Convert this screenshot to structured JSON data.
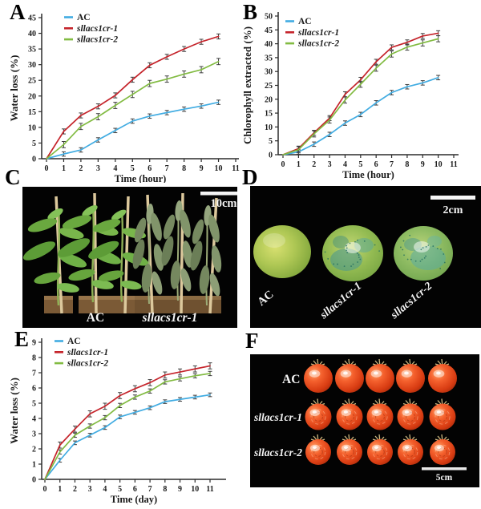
{
  "panels": {
    "A": {
      "letter": "A"
    },
    "B": {
      "letter": "B"
    },
    "C": {
      "letter": "C",
      "scale_bar": "10cm",
      "group_labels": [
        "AC",
        "sllacs1cr-1"
      ]
    },
    "D": {
      "letter": "D",
      "scale_bar": "2cm",
      "fruit_labels": [
        "AC",
        "sllacs1cr-1",
        "sllacs1cr-2"
      ]
    },
    "E": {
      "letter": "E"
    },
    "F": {
      "letter": "F",
      "scale_bar": "5cm",
      "row_labels": [
        "AC",
        "sllacs1cr-1",
        "sllacs1cr-2"
      ]
    }
  },
  "chart_data": [
    {
      "id": "A",
      "type": "line",
      "xlabel": "Time (hour)",
      "ylabel": "Water loss (%)",
      "xlim": [
        0,
        11
      ],
      "ylim": [
        0,
        45
      ],
      "ytick_step": 5,
      "xticks": [
        0,
        1,
        2,
        3,
        4,
        5,
        6,
        7,
        8,
        9,
        10,
        11
      ],
      "x": [
        0,
        1,
        2,
        3,
        4,
        5,
        6,
        7,
        8,
        9,
        10
      ],
      "grid": false,
      "legend_position": "top-left",
      "series": [
        {
          "name": "AC",
          "color": "#41ace2",
          "italic": false,
          "err": 0.7,
          "values": [
            0,
            1.5,
            2.8,
            6.0,
            9.0,
            12.0,
            13.6,
            14.7,
            15.8,
            16.8,
            18.0
          ]
        },
        {
          "name": "sllacs1cr-1",
          "color": "#c5242b",
          "italic": true,
          "err": 0.8,
          "values": [
            0,
            8.7,
            13.8,
            16.7,
            20.2,
            25.2,
            29.8,
            32.5,
            35.0,
            37.3,
            39.0
          ]
        },
        {
          "name": "sllacs1cr-2",
          "color": "#82bb42",
          "italic": true,
          "err": 1.0,
          "values": [
            0,
            4.5,
            10.3,
            13.4,
            17.0,
            20.5,
            24.0,
            25.4,
            27.0,
            28.4,
            31.0
          ]
        }
      ]
    },
    {
      "id": "B",
      "type": "line",
      "xlabel": "Time (hour)",
      "ylabel": "Chlorophyll extracted (%)",
      "xlim": [
        0,
        11
      ],
      "ylim": [
        0,
        50
      ],
      "ytick_step": 5,
      "xticks": [
        0,
        1,
        2,
        3,
        4,
        5,
        6,
        7,
        8,
        9,
        10,
        11
      ],
      "x": [
        0,
        1,
        2,
        3,
        4,
        5,
        6,
        7,
        8,
        9,
        10
      ],
      "grid": false,
      "legend_position": "top-left",
      "series": [
        {
          "name": "AC",
          "color": "#41ace2",
          "italic": false,
          "err": 0.8,
          "values": [
            0,
            1.0,
            3.8,
            7.3,
            11.4,
            14.5,
            18.7,
            22.4,
            24.5,
            25.9,
            27.8
          ]
        },
        {
          "name": "sllacs1cr-1",
          "color": "#c5242b",
          "italic": true,
          "err": 0.9,
          "values": [
            0,
            2.2,
            7.9,
            13.2,
            21.8,
            27.0,
            33.5,
            38.7,
            40.5,
            42.8,
            43.8
          ]
        },
        {
          "name": "sllacs1cr-2",
          "color": "#82bb42",
          "italic": true,
          "err": 1.1,
          "values": [
            0,
            1.8,
            7.5,
            12.5,
            19.7,
            25.4,
            31.2,
            36.3,
            38.8,
            40.3,
            41.8
          ]
        }
      ]
    },
    {
      "id": "E",
      "type": "line",
      "xlabel": "Time (day)",
      "ylabel": "Water loss (%)",
      "xlim": [
        0,
        11
      ],
      "ylim": [
        0,
        9
      ],
      "ytick_step": 1,
      "xticks": [
        0,
        1,
        2,
        3,
        4,
        5,
        6,
        7,
        8,
        9,
        10,
        11
      ],
      "x": [
        0,
        1,
        2,
        3,
        4,
        5,
        6,
        7,
        8,
        9,
        10,
        11
      ],
      "grid": false,
      "legend_position": "top-left",
      "series": [
        {
          "name": "AC",
          "color": "#41ace2",
          "italic": false,
          "err": 0.12,
          "values": [
            0,
            1.25,
            2.4,
            2.9,
            3.4,
            4.1,
            4.4,
            4.7,
            5.1,
            5.25,
            5.4,
            5.55
          ]
        },
        {
          "name": "sllacs1cr-1",
          "color": "#c5242b",
          "italic": true,
          "err": 0.2,
          "values": [
            0,
            2.25,
            3.3,
            4.3,
            4.8,
            5.5,
            5.95,
            6.35,
            6.85,
            7.05,
            7.25,
            7.45
          ]
        },
        {
          "name": "sllacs1cr-2",
          "color": "#82bb42",
          "italic": true,
          "err": 0.14,
          "values": [
            0,
            1.8,
            2.9,
            3.5,
            4.05,
            4.85,
            5.4,
            5.8,
            6.4,
            6.6,
            6.8,
            6.95
          ]
        }
      ]
    }
  ]
}
